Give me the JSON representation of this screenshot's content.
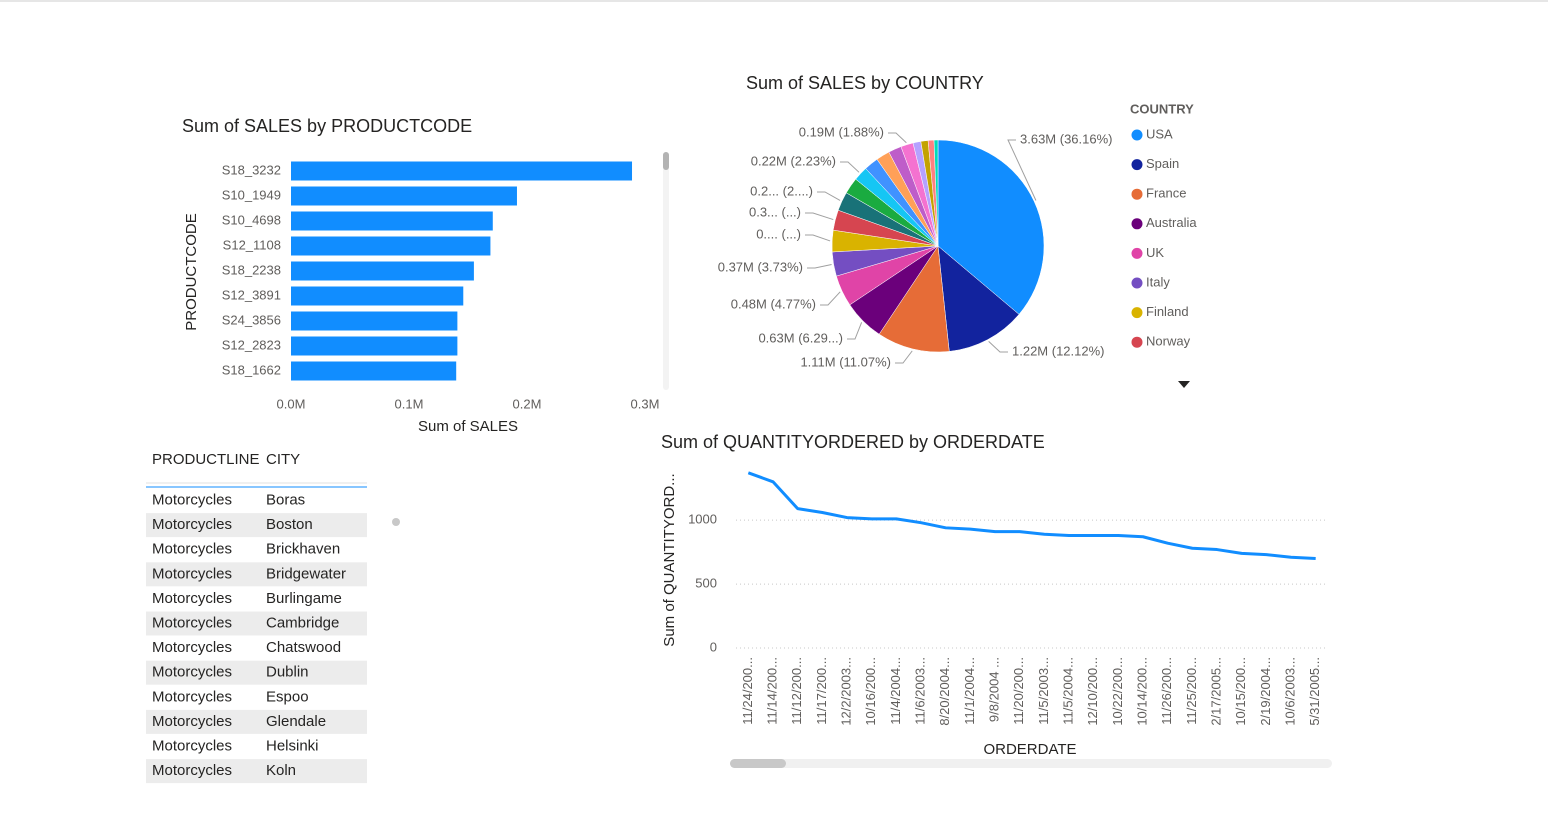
{
  "chart_data": [
    {
      "type": "bar",
      "orientation": "horizontal",
      "title": "Sum of SALES by PRODUCTCODE",
      "x_label": "Sum of SALES",
      "y_label": "PRODUCTCODE",
      "categories": [
        "S18_3232",
        "S10_1949",
        "S10_4698",
        "S12_1108",
        "S18_2238",
        "S12_3891",
        "S24_3856",
        "S12_2823",
        "S18_1662"
      ],
      "values": [
        289000,
        191500,
        171000,
        169000,
        155000,
        146000,
        141000,
        141000,
        140000
      ],
      "color": "#118DFF",
      "grid": false,
      "xlim": [
        0,
        300000
      ],
      "xticks": [
        {
          "value": 0,
          "label": "0.0M"
        },
        {
          "value": 100000,
          "label": "0.1M"
        },
        {
          "value": 200000,
          "label": "0.2M"
        },
        {
          "value": 300000,
          "label": "0.3M"
        }
      ]
    },
    {
      "type": "pie",
      "title": "Sum of SALES by COUNTRY",
      "legend_title": "COUNTRY",
      "legend": "right",
      "categories": [
        "USA",
        "Spain",
        "France",
        "Australia",
        "UK",
        "Italy",
        "Finland",
        "Norway",
        null,
        null,
        null,
        null,
        null,
        null,
        null,
        null,
        null,
        null,
        null
      ],
      "values": [
        3630000,
        1220000,
        1110000,
        630000,
        480000,
        370000,
        330000,
        310000,
        290000,
        250000,
        220000,
        220000,
        210000,
        200000,
        190000,
        120000,
        110000,
        90000,
        60000
      ],
      "value_labels": [
        "3.63M (36.16%)",
        "1.22M (12.12%)",
        "1.11M (11.07%)",
        "0.63M (6.29...)",
        "0.48M (4.77%)",
        "0.37M (3.73%)",
        "0.... (...)",
        "0.3... (...)",
        "0.2... (2....)",
        null,
        "0.22M (2.23%)",
        null,
        null,
        null,
        "0.19M (1.88%)",
        null,
        null,
        null,
        null
      ],
      "colors": [
        "#118DFF",
        "#12239E",
        "#E66C37",
        "#6B007B",
        "#E044A7",
        "#744EC2",
        "#D9B300",
        "#D64550",
        "#197278",
        "#1AAB40",
        "#15C6F4",
        "#4092FF",
        "#FFA058",
        "#BE5DC9",
        "#F472D0",
        "#B5A1FF",
        "#C4A200",
        "#FF8080",
        "#00DBBC"
      ]
    },
    {
      "type": "line",
      "title": "Sum of QUANTITYORDERED by ORDERDATE",
      "x_label": "ORDERDATE",
      "y_label": "Sum of QUANTITYORD...",
      "categories": [
        "11/24/200...",
        "11/14/200...",
        "11/12/200...",
        "11/17/200...",
        "12/2/2003...",
        "10/16/200...",
        "11/4/2004...",
        "11/6/2003...",
        "8/20/2004...",
        "11/1/2004...",
        "9/8/2004 ...",
        "11/20/200...",
        "11/5/2003...",
        "11/5/2004...",
        "12/10/200...",
        "10/22/200...",
        "10/14/200...",
        "11/26/200...",
        "11/25/200...",
        "2/17/2005...",
        "10/15/200...",
        "2/19/2004...",
        "10/6/2003...",
        "5/31/2005..."
      ],
      "values": [
        1370,
        1300,
        1090,
        1060,
        1020,
        1010,
        1010,
        980,
        940,
        930,
        910,
        910,
        890,
        880,
        880,
        880,
        870,
        820,
        780,
        770,
        740,
        730,
        710,
        700
      ],
      "color": "#118DFF",
      "grid": true,
      "ylim": [
        0,
        1400
      ],
      "yticks": [
        0,
        500,
        1000
      ]
    }
  ],
  "table": {
    "columns": [
      "PRODUCTLINE",
      "CITY"
    ],
    "rows": [
      [
        "Motorcycles",
        "Boras"
      ],
      [
        "Motorcycles",
        "Boston"
      ],
      [
        "Motorcycles",
        "Brickhaven"
      ],
      [
        "Motorcycles",
        "Bridgewater"
      ],
      [
        "Motorcycles",
        "Burlingame"
      ],
      [
        "Motorcycles",
        "Cambridge"
      ],
      [
        "Motorcycles",
        "Chatswood"
      ],
      [
        "Motorcycles",
        "Dublin"
      ],
      [
        "Motorcycles",
        "Espoo"
      ],
      [
        "Motorcycles",
        "Glendale"
      ],
      [
        "Motorcycles",
        "Helsinki"
      ],
      [
        "Motorcycles",
        "Koln"
      ]
    ]
  }
}
